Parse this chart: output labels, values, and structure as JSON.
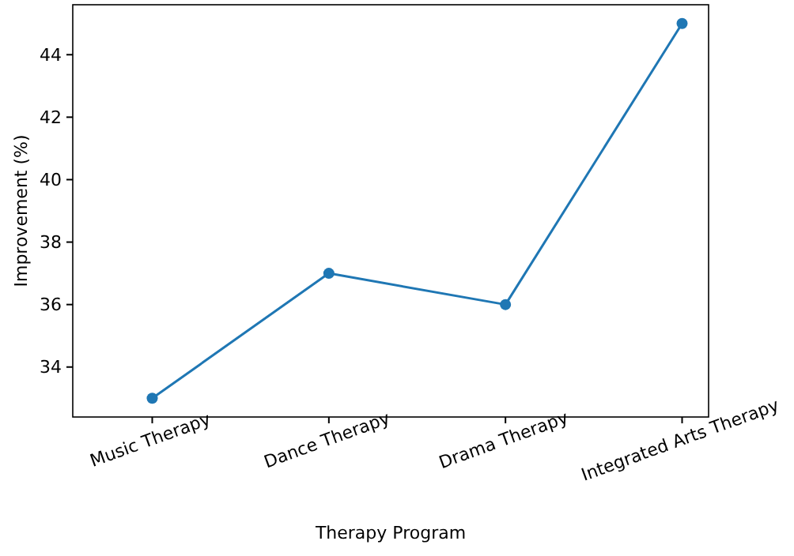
{
  "chart_data": {
    "type": "line",
    "xlabel": "Therapy Program",
    "ylabel": "Improvement (%)",
    "categories": [
      "Music Therapy",
      "Dance Therapy",
      "Drama Therapy",
      "Integrated Arts Therapy"
    ],
    "series": [
      {
        "color": "#1f77b4",
        "values": [
          33,
          37,
          36,
          45
        ]
      }
    ],
    "ylim": [
      32.4,
      45.6
    ],
    "yticks": [
      34,
      36,
      38,
      40,
      42,
      44
    ],
    "marker": "circle",
    "line_style": "solid"
  }
}
